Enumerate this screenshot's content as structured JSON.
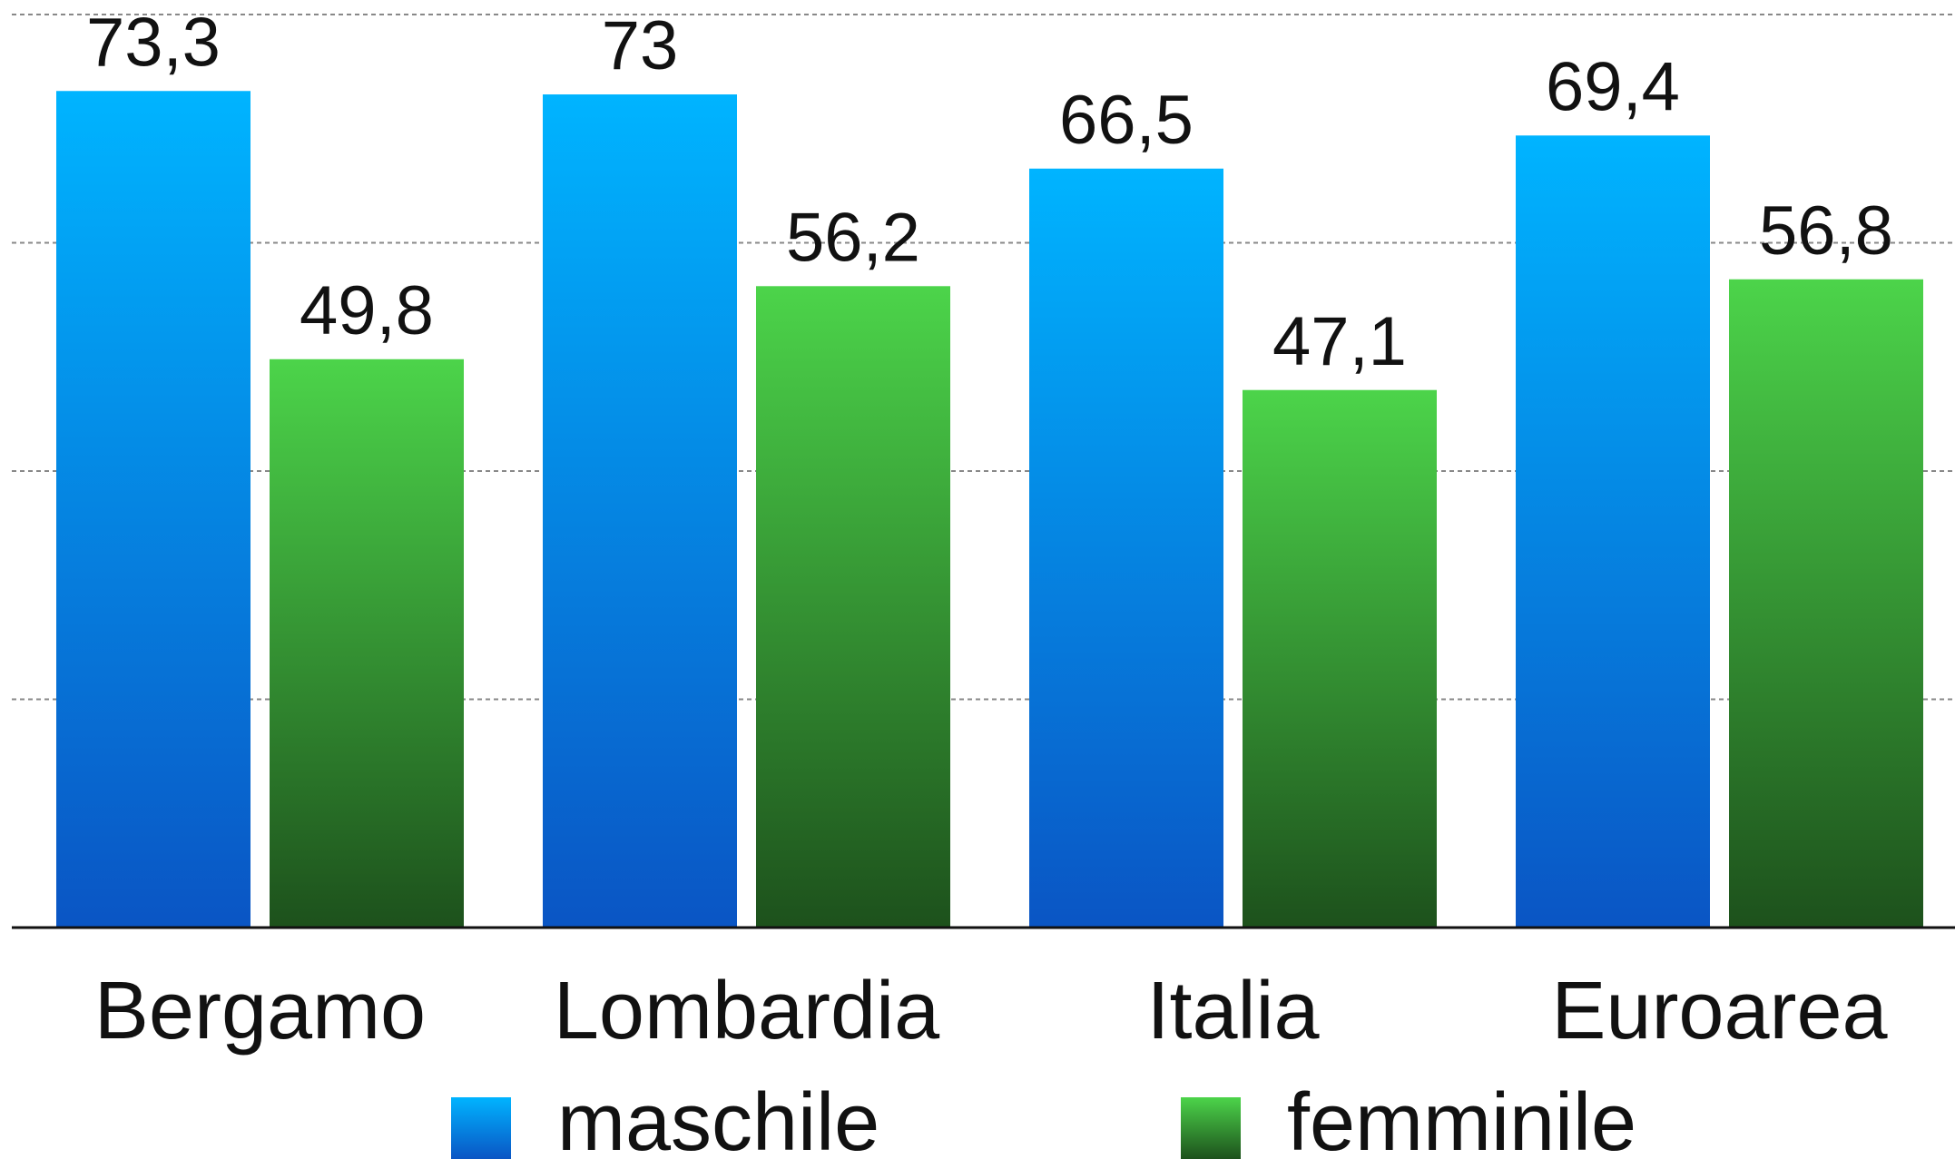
{
  "chart_data": {
    "type": "bar",
    "categories": [
      "Bergamo",
      "Lombardia",
      "Italia",
      "Euroarea"
    ],
    "series": [
      {
        "name": "maschile",
        "color": "#00b4ff",
        "values": [
          73.3,
          73,
          66.5,
          69.4
        ],
        "value_labels": [
          "73,3",
          "73",
          "66,5",
          "69,4"
        ]
      },
      {
        "name": "femminile",
        "color": "#4cd44a",
        "values": [
          49.8,
          56.2,
          47.1,
          56.8
        ],
        "value_labels": [
          "49,8",
          "56,2",
          "47,1",
          "56,8"
        ]
      }
    ],
    "ylim": [
      0,
      80
    ],
    "yticks": [
      0,
      20,
      40,
      60,
      80
    ],
    "grid": true,
    "legend": "bottom"
  }
}
